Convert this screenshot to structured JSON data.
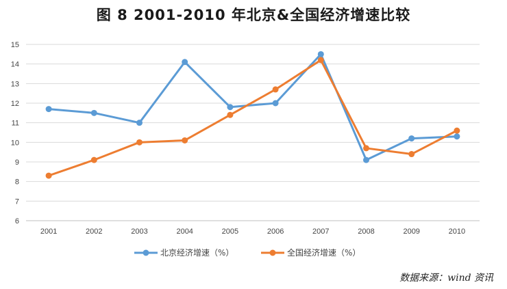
{
  "chart_data": {
    "type": "line",
    "title": "图 8   2001-2010 年北京&全国经济增速比较",
    "xlabel": "",
    "ylabel": "",
    "categories": [
      "2001",
      "2002",
      "2003",
      "2004",
      "2005",
      "2006",
      "2007",
      "2008",
      "2009",
      "2010"
    ],
    "ylim": [
      6,
      15
    ],
    "yticks": [
      "6",
      "7",
      "8",
      "9",
      "10",
      "11",
      "12",
      "13",
      "14",
      "15"
    ],
    "grid": true,
    "legend_position": "bottom",
    "series": [
      {
        "name": "北京经济增速（%）",
        "color": "#5b9bd5",
        "values": [
          11.7,
          11.5,
          11.0,
          14.1,
          11.8,
          12.0,
          14.5,
          9.1,
          10.2,
          10.3
        ]
      },
      {
        "name": "全国经济增速（%）",
        "color": "#ed7d31",
        "values": [
          8.3,
          9.1,
          10.0,
          10.1,
          11.4,
          12.7,
          14.2,
          9.7,
          9.4,
          10.6
        ]
      }
    ]
  },
  "source": "数据来源：wind 资讯"
}
